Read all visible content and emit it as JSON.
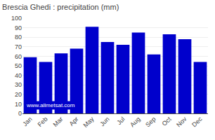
{
  "chart_data": {
    "type": "bar",
    "title": "Brescia Ghedi : precipitation (mm)",
    "categories": [
      "Jan",
      "Feb",
      "Mar",
      "Apr",
      "May",
      "Jun",
      "Jul",
      "Aug",
      "Sep",
      "Oct",
      "Nov",
      "Dec"
    ],
    "values": [
      59,
      54,
      63,
      68,
      91,
      75,
      72,
      85,
      62,
      83,
      78,
      54
    ],
    "color": "#0000cc",
    "ylim": [
      0,
      100
    ],
    "yticks": [
      0,
      10,
      20,
      30,
      40,
      50,
      60,
      70,
      80,
      90,
      100
    ],
    "grid": true,
    "annotations": [
      {
        "text": "www.allmetsat.com"
      }
    ]
  }
}
